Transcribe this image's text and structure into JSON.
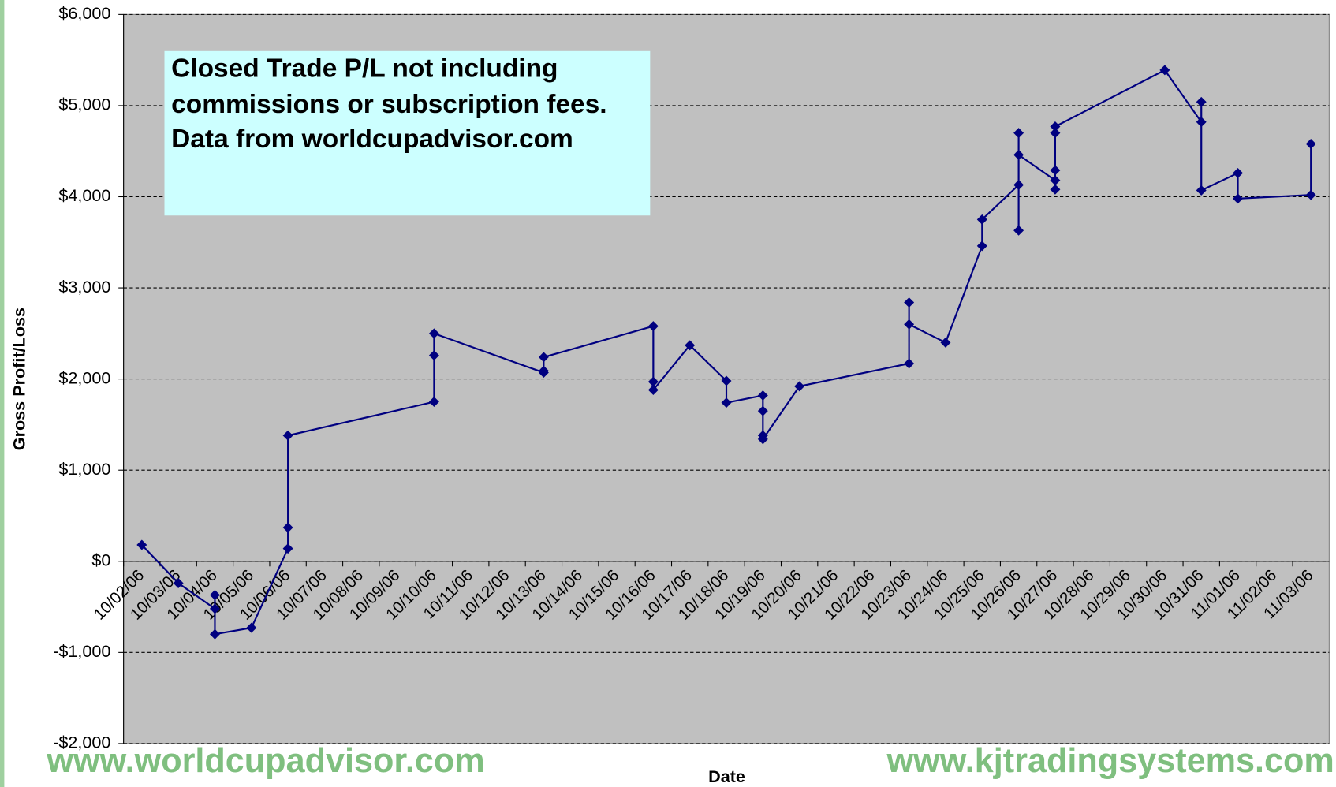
{
  "chart_data": {
    "type": "line",
    "categories": [
      "10/02/06",
      "10/03/06",
      "10/04/06",
      "10/05/06",
      "10/06/06",
      "10/07/06",
      "10/08/06",
      "10/09/06",
      "10/10/06",
      "10/11/06",
      "10/12/06",
      "10/13/06",
      "10/14/06",
      "10/15/06",
      "10/16/06",
      "10/17/06",
      "10/18/06",
      "10/19/06",
      "10/20/06",
      "10/21/06",
      "10/22/06",
      "10/23/06",
      "10/24/06",
      "10/25/06",
      "10/26/06",
      "10/27/06",
      "10/28/06",
      "10/29/06",
      "10/30/06",
      "10/31/06",
      "11/01/06",
      "11/02/06",
      "11/03/06"
    ],
    "x": [
      "10/02/06",
      "10/03/06",
      "10/04/06",
      "10/04/06",
      "10/04/06",
      "10/05/06",
      "10/06/06",
      "10/06/06",
      "10/06/06",
      "10/10/06",
      "10/10/06",
      "10/10/06",
      "10/13/06",
      "10/13/06",
      "10/13/06",
      "10/16/06",
      "10/16/06",
      "10/16/06",
      "10/17/06",
      "10/18/06",
      "10/18/06",
      "10/19/06",
      "10/19/06",
      "10/19/06",
      "10/19/06",
      "10/20/06",
      "10/23/06",
      "10/23/06",
      "10/23/06",
      "10/24/06",
      "10/25/06",
      "10/25/06",
      "10/26/06",
      "10/26/06",
      "10/26/06",
      "10/26/06",
      "10/27/06",
      "10/27/06",
      "10/27/06",
      "10/27/06",
      "10/27/06",
      "10/30/06",
      "10/31/06",
      "10/31/06",
      "10/31/06",
      "11/01/06",
      "11/01/06",
      "11/03/06",
      "11/03/06"
    ],
    "values": [
      180,
      -240,
      -520,
      -370,
      -800,
      -730,
      140,
      370,
      1380,
      1750,
      2260,
      2500,
      2070,
      2090,
      2240,
      2580,
      1970,
      1880,
      2370,
      1980,
      1740,
      1820,
      1650,
      1380,
      1340,
      1920,
      2170,
      2840,
      2600,
      2400,
      3460,
      3750,
      4130,
      3630,
      4700,
      4460,
      4180,
      4080,
      4290,
      4700,
      4770,
      5390,
      4820,
      5040,
      4070,
      4260,
      3980,
      4020,
      4580
    ],
    "color": "#000080",
    "ylim": [
      -2000,
      6000
    ],
    "yticks": [
      {
        "value": -2000,
        "label": "-$2,000"
      },
      {
        "value": -1000,
        "label": "-$1,000"
      },
      {
        "value": 0,
        "label": "$0"
      },
      {
        "value": 1000,
        "label": "$1,000"
      },
      {
        "value": 2000,
        "label": "$2,000"
      },
      {
        "value": 3000,
        "label": "$3,000"
      },
      {
        "value": 4000,
        "label": "$4,000"
      },
      {
        "value": 5000,
        "label": "$5,000"
      },
      {
        "value": 6000,
        "label": "$6,000"
      }
    ],
    "grid": true,
    "y_label": "Gross Profit/Loss",
    "x_label": "Date",
    "annotation": [
      "Closed Trade P/L not including",
      "commissions or subscription fees.",
      "Data from worldcupadvisor.com"
    ],
    "watermarks": [
      "www.worldcupadvisor.com",
      "www.kjtradingsystems.com"
    ]
  }
}
